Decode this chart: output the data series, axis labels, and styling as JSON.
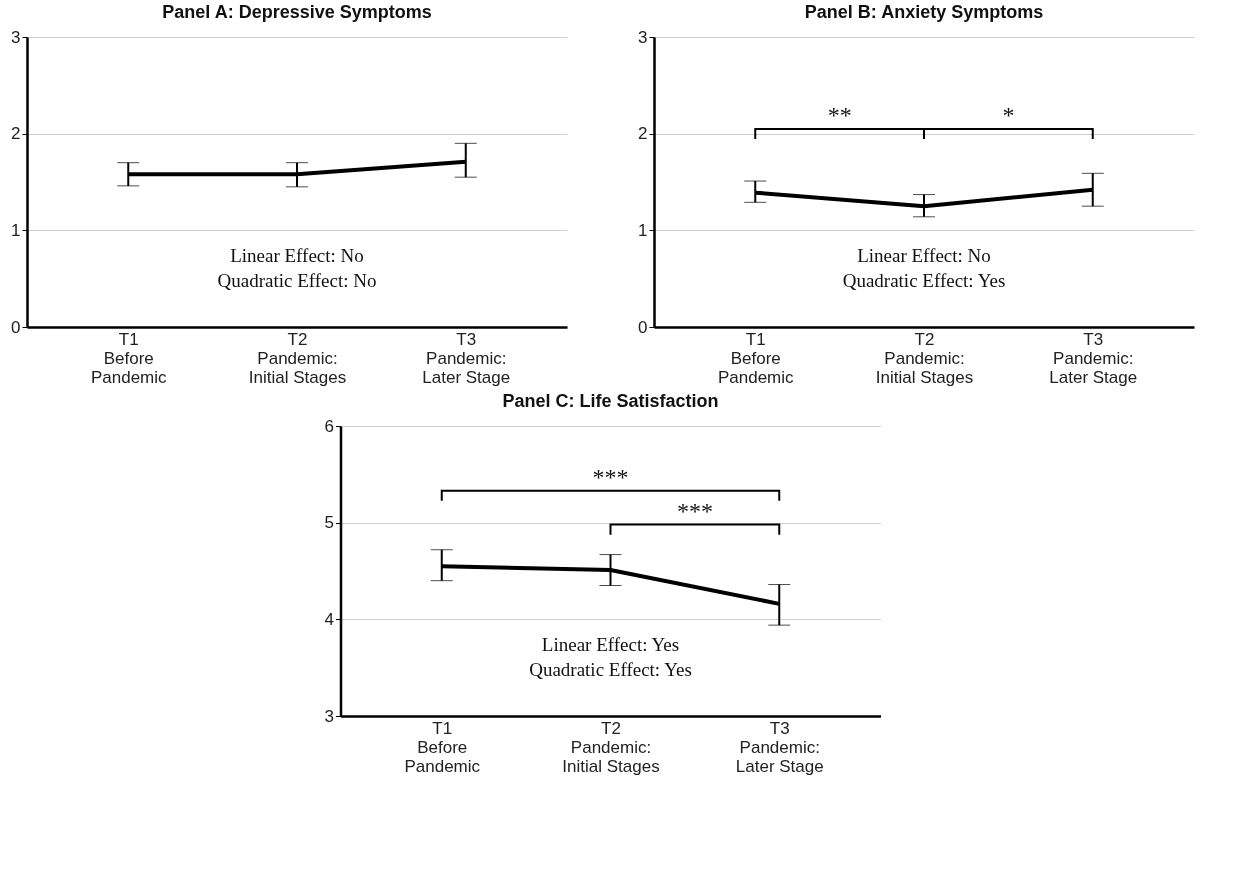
{
  "chart_data": [
    {
      "type": "line",
      "title": "Panel A: Depressive Symptoms",
      "categories": [
        "T1\nBefore\nPandemic",
        "T2\nPandemic:\nInitial Stages",
        "T3\nPandemic:\nLater Stage"
      ],
      "series": [
        {
          "color": "#000000",
          "values": [
            1.58,
            1.58,
            1.71
          ],
          "errors": [
            [
              1.46,
              1.7
            ],
            [
              1.45,
              1.7
            ],
            [
              1.55,
              1.9
            ]
          ]
        }
      ],
      "ylim": [
        0,
        3
      ],
      "yticks": [
        0,
        1,
        2,
        3
      ],
      "grid": "y",
      "marker": "none",
      "annotations": [
        "Linear Effect: No",
        "Quadratic Effect: No"
      ]
    },
    {
      "type": "line",
      "title": "Panel B: Anxiety Symptoms",
      "categories": [
        "T1\nBefore\nPandemic",
        "T2\nPandemic:\nInitial Stages",
        "T3\nPandemic:\nLater Stage"
      ],
      "series": [
        {
          "color": "#000000",
          "values": [
            1.39,
            1.25,
            1.42
          ],
          "errors": [
            [
              1.29,
              1.51
            ],
            [
              1.14,
              1.37
            ],
            [
              1.25,
              1.59
            ]
          ]
        }
      ],
      "ylim": [
        0,
        3
      ],
      "yticks": [
        0,
        1,
        2,
        3
      ],
      "grid": "y",
      "marker": "none",
      "annotations": [
        "Linear Effect: No",
        "Quadratic Effect: Yes",
        "**",
        "*"
      ]
    },
    {
      "type": "line",
      "title": "Panel C: Life Satisfaction",
      "categories": [
        "T1\nBefore\nPandemic",
        "T2\nPandemic:\nInitial Stages",
        "T3\nPandemic:\nLater Stage"
      ],
      "series": [
        {
          "color": "#000000",
          "values": [
            4.55,
            4.51,
            4.16
          ],
          "errors": [
            [
              4.4,
              4.72
            ],
            [
              4.35,
              4.67
            ],
            [
              3.94,
              4.36
            ]
          ]
        }
      ],
      "ylim": [
        3,
        6
      ],
      "yticks": [
        3,
        4,
        5,
        6
      ],
      "grid": "y",
      "marker": "none",
      "annotations": [
        "Linear Effect: Yes",
        "Quadratic Effect: Yes",
        "***",
        "***"
      ]
    }
  ]
}
